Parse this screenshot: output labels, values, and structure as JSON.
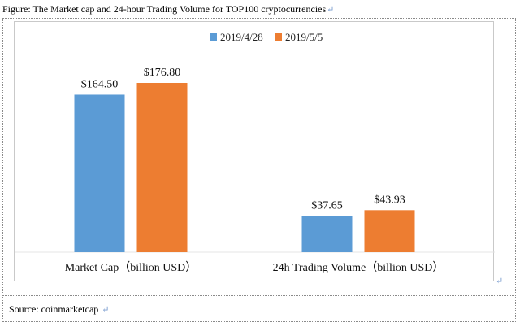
{
  "caption": "Figure: The Market cap and 24-hour Trading Volume for TOP100 cryptocurrencies",
  "return_mark": "↵",
  "source": "Source: coinmarketcap",
  "chart_data": {
    "type": "bar",
    "title": "",
    "categories": [
      "Market Cap（billion USD）",
      "24h Trading Volume（billion USD）"
    ],
    "series": [
      {
        "name": "2019/4/28",
        "color": "#5b9bd5",
        "values": [
          164.5,
          37.65
        ],
        "labels": [
          "$164.50",
          "$37.65"
        ]
      },
      {
        "name": "2019/5/5",
        "color": "#ed7d31",
        "values": [
          176.8,
          43.93
        ],
        "labels": [
          "$176.80",
          "$43.93"
        ]
      }
    ],
    "ylim": [
      0,
      176.8
    ],
    "grid": false,
    "legend": "top-center"
  }
}
